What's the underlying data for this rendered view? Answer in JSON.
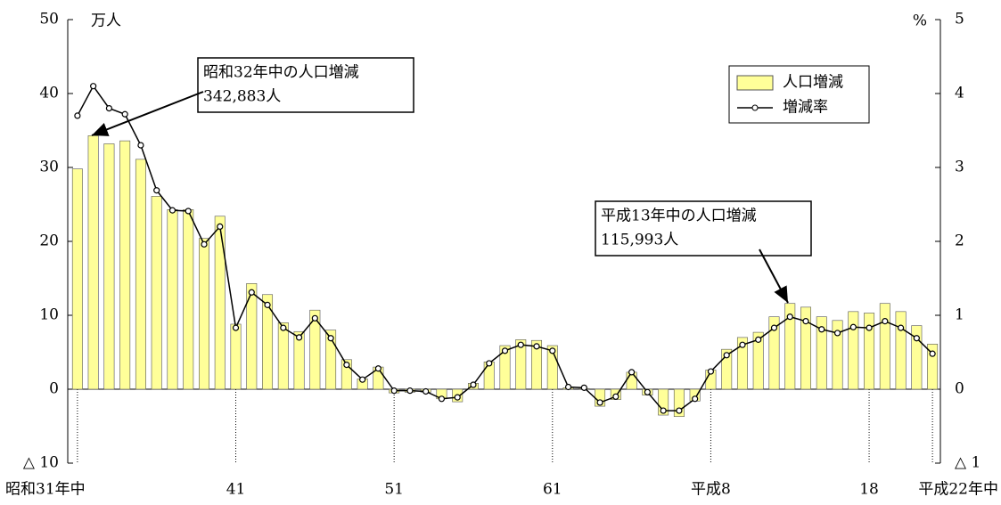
{
  "chart_data": {
    "type": "bar-line",
    "y_unit": "万人",
    "y2_unit": "%",
    "categories": [
      "昭和31年中",
      null,
      null,
      null,
      null,
      null,
      null,
      null,
      null,
      null,
      "41",
      null,
      null,
      null,
      null,
      null,
      null,
      null,
      null,
      null,
      "51",
      null,
      null,
      null,
      null,
      null,
      null,
      null,
      null,
      null,
      "61",
      null,
      null,
      null,
      null,
      null,
      null,
      null,
      null,
      null,
      "平成8",
      null,
      null,
      null,
      null,
      null,
      null,
      null,
      null,
      null,
      "18",
      null,
      null,
      null,
      "平成22年中"
    ],
    "series": [
      {
        "name": "人口増減",
        "kind": "bar",
        "color": "#ffff99",
        "values": [
          29.8,
          34.3,
          33.2,
          33.6,
          31.1,
          26.1,
          24.3,
          24.3,
          20.4,
          23.4,
          8.8,
          14.3,
          12.8,
          9.0,
          7.8,
          10.7,
          8.0,
          4.0,
          1.4,
          3.0,
          -0.5,
          -0.4,
          -0.4,
          -1.3,
          -1.7,
          0.8,
          3.7,
          5.9,
          6.7,
          6.6,
          5.9,
          0.2,
          0.1,
          -2.3,
          -1.4,
          2.3,
          -0.8,
          -3.5,
          -3.7,
          -1.6,
          2.6,
          5.4,
          7.0,
          7.7,
          9.8,
          11.6,
          11.1,
          9.8,
          9.3,
          10.5,
          10.3,
          11.6,
          10.5,
          8.6,
          6.1
        ]
      },
      {
        "name": "増減率",
        "kind": "line",
        "axis": "y2",
        "color": "#000000",
        "values": [
          3.7,
          4.1,
          3.8,
          3.72,
          3.3,
          2.69,
          2.42,
          2.41,
          1.96,
          2.2,
          0.83,
          1.31,
          1.14,
          0.83,
          0.7,
          0.96,
          0.69,
          0.33,
          0.13,
          0.28,
          -0.02,
          -0.02,
          -0.03,
          -0.13,
          -0.11,
          0.06,
          0.35,
          0.52,
          0.6,
          0.58,
          0.52,
          0.03,
          0.02,
          -0.18,
          -0.1,
          0.23,
          -0.04,
          -0.29,
          -0.29,
          -0.13,
          0.24,
          0.46,
          0.6,
          0.67,
          0.83,
          0.98,
          0.92,
          0.81,
          0.76,
          0.84,
          0.83,
          0.92,
          0.83,
          0.69,
          0.48
        ]
      }
    ],
    "ylim": [
      -10,
      50
    ],
    "yticks": [
      {
        "value": -10,
        "label": "△ 10"
      },
      0,
      10,
      20,
      30,
      40,
      50
    ],
    "y2lim": [
      -1,
      5
    ],
    "y2ticks": [
      {
        "value": -1,
        "label": "△ 1"
      },
      0,
      1,
      2,
      3,
      4,
      5
    ],
    "legend": "upper right",
    "annotations": [
      [
        "昭和32年中の人口増減",
        "342,883人"
      ],
      [
        "平成13年中の人口増減",
        "115,993人"
      ]
    ]
  }
}
